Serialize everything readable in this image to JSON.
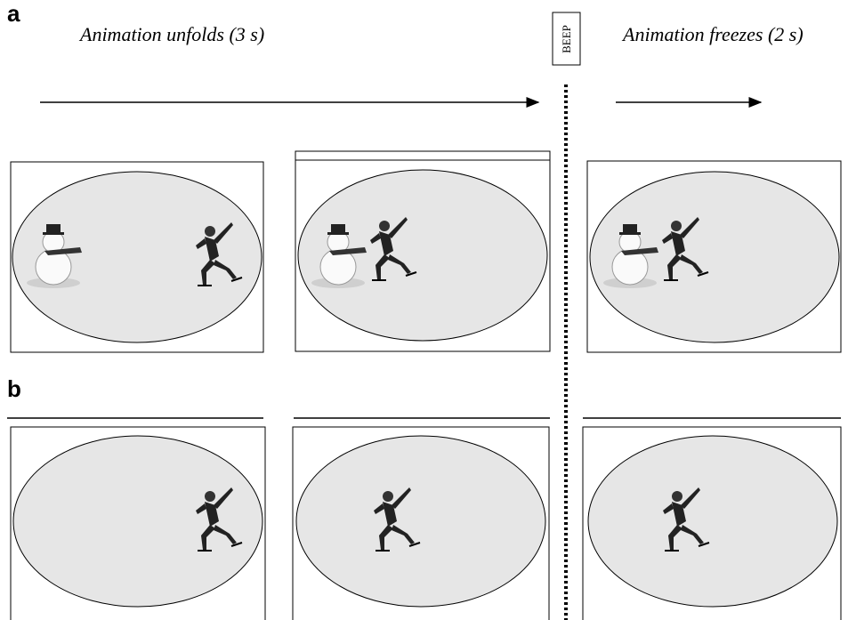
{
  "panel_a_label": "a",
  "panel_b_label": "b",
  "phase_1": "Animation unfolds (3 s)",
  "beep": "BEEP",
  "phase_2": "Animation freezes (2 s)"
}
